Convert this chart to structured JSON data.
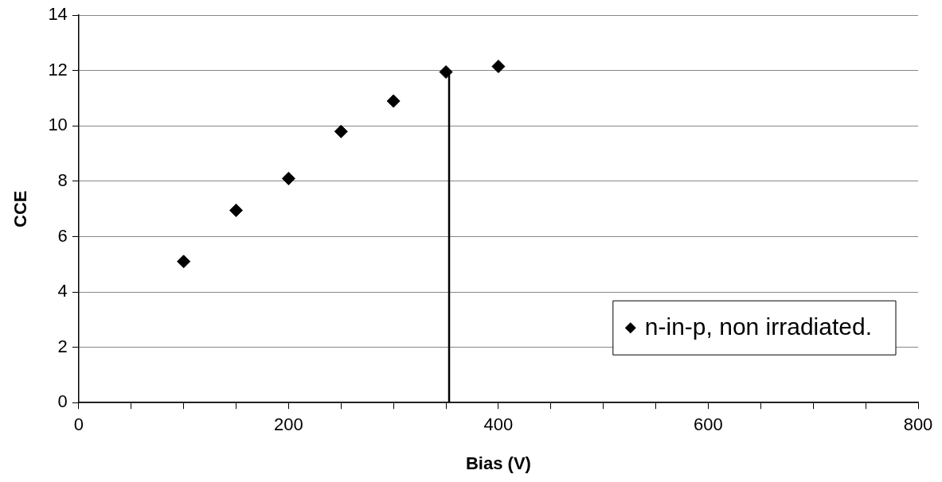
{
  "chart_data": {
    "type": "scatter",
    "xlabel": "Bias (V)",
    "ylabel": "CCE",
    "series": [
      {
        "name": "n-in-p, non irradiated.",
        "color": "#000000",
        "x": [
          100,
          150,
          200,
          250,
          300,
          350,
          400
        ],
        "values": [
          5.1,
          6.95,
          8.1,
          9.8,
          10.9,
          11.95,
          12.15
        ]
      },
      {
        "type": "line",
        "marker": "none",
        "color": "#000000",
        "x": [
          353,
          353
        ],
        "values": [
          0,
          12
        ]
      }
    ],
    "marker": "diamond",
    "xlim": [
      0,
      800
    ],
    "ylim": [
      0,
      14
    ],
    "xticks": [
      0,
      {
        "value": 50,
        "label": null
      },
      {
        "value": 100,
        "label": null
      },
      {
        "value": 150,
        "label": null
      },
      200,
      {
        "value": 250,
        "label": null
      },
      {
        "value": 300,
        "label": null
      },
      {
        "value": 350,
        "label": null
      },
      400,
      {
        "value": 450,
        "label": null
      },
      {
        "value": 500,
        "label": null
      },
      {
        "value": 550,
        "label": null
      },
      600,
      {
        "value": 650,
        "label": null
      },
      {
        "value": 700,
        "label": null
      },
      {
        "value": 750,
        "label": null
      },
      800
    ],
    "yticks": [
      0,
      2,
      4,
      6,
      8,
      10,
      12,
      14
    ],
    "grid": "y",
    "legend": "bottom right"
  }
}
